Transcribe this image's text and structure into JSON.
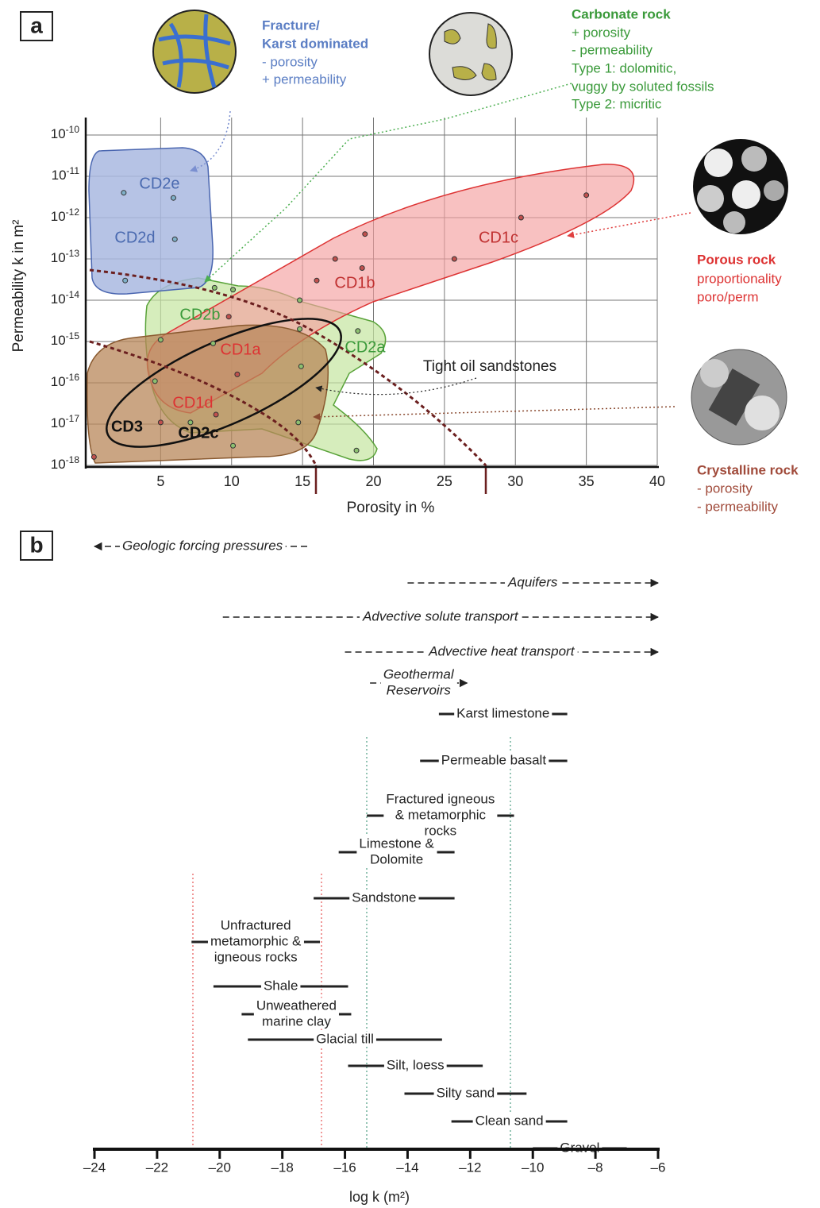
{
  "chart_data": [
    {
      "type": "scatter",
      "panel_label": "a",
      "xlabel": "Porosity in %",
      "ylabel": "Permeability k in m²",
      "xlim": [
        0,
        40
      ],
      "xticks": [
        5,
        10,
        15,
        20,
        25,
        30,
        35,
        40
      ],
      "ylim": [
        1e-18,
        1e-10
      ],
      "yscale": "log",
      "yticks": [
        {
          "value": 1e-10,
          "label": "10-10"
        },
        {
          "value": 1e-11,
          "label": "10-11"
        },
        {
          "value": 1e-12,
          "label": "10-12"
        },
        {
          "value": 1e-13,
          "label": "10-13"
        },
        {
          "value": 1e-14,
          "label": "10-14"
        },
        {
          "value": 1e-15,
          "label": "10-15"
        },
        {
          "value": 1e-16,
          "label": "10-16"
        },
        {
          "value": 1e-17,
          "label": "10-17"
        },
        {
          "value": 1e-18,
          "label": "10-18"
        }
      ],
      "grid": true,
      "series": [
        {
          "color": "#7fb0c8",
          "x": [
            2.4,
            5.9,
            6.0,
            2.5
          ],
          "values": [
            4e-12,
            3e-12,
            3e-13,
            3e-14
          ]
        },
        {
          "color": "#c0504d",
          "x": [
            35,
            30.4,
            25.7,
            19.4,
            17.3,
            19.2,
            16.0,
            9.8,
            10.4,
            8.9,
            5.0,
            0.3
          ],
          "values": [
            3.5e-12,
            1e-12,
            1e-13,
            4e-13,
            1e-13,
            6e-14,
            3e-14,
            4e-15,
            1.6e-16,
            1.7e-17,
            1.1e-17,
            1.6e-18
          ]
        },
        {
          "color": "#8cc070",
          "x": [
            8.8,
            10.1,
            14.8,
            5.0,
            14.8,
            18.9,
            8.7,
            4.6,
            14.9,
            7.1,
            14.7,
            10.1,
            18.8
          ],
          "values": [
            2e-14,
            1.8e-14,
            1e-14,
            1.1e-15,
            2e-15,
            1.8e-15,
            9e-16,
            1.1e-16,
            2.5e-16,
            1.1e-17,
            1.1e-17,
            3e-18,
            2.3e-18
          ]
        }
      ],
      "regions": [
        "CD2e",
        "CD2d",
        "CD2b",
        "CD2a",
        "CD1a",
        "CD1b",
        "CD1c",
        "CD1d",
        "CD3",
        "CD2c",
        "Tight oil sandstones"
      ],
      "annotations": {
        "fracture": [
          "Fracture/",
          "Karst dominated",
          "- porosity",
          "+ permeability"
        ],
        "carbonate": [
          "Carbonate rock",
          "+ porosity",
          "- permeability",
          "Type 1: dolomitic,",
          "vuggy by soluted fossils",
          "Type 2: micritic"
        ],
        "porous": [
          "Porous rock",
          "proportionality",
          "poro/perm"
        ],
        "crystalline": [
          "Crystalline rock",
          "- porosity",
          "- permeability"
        ]
      }
    },
    {
      "type": "range",
      "panel_label": "b",
      "xlabel": "log k (m²)",
      "xlim": [
        -24,
        -6
      ],
      "xticks": [
        {
          "value": -24,
          "label": "–24"
        },
        {
          "value": -22,
          "label": "–22"
        },
        {
          "value": -20,
          "label": "–20"
        },
        {
          "value": -18,
          "label": "–18"
        },
        {
          "value": -16,
          "label": "–16"
        },
        {
          "value": -14,
          "label": "–14"
        },
        {
          "value": -12,
          "label": "–12"
        },
        {
          "value": -10,
          "label": "–10"
        },
        {
          "value": -8,
          "label": "–8"
        },
        {
          "value": -6,
          "label": "–6"
        }
      ],
      "ranges": [
        {
          "label": [
            "Geologic forcing pressures"
          ],
          "low": -24,
          "high": -17.1,
          "style": "dashed",
          "arrow": "left"
        },
        {
          "label": [
            "Aquifers"
          ],
          "low": -14.0,
          "high": -6,
          "style": "dashed",
          "arrow": "right"
        },
        {
          "label": [
            "Advective solute transport"
          ],
          "low": -19.9,
          "high": -6,
          "style": "dashed",
          "arrow": "right"
        },
        {
          "label": [
            "Advective heat transport"
          ],
          "low": -16.0,
          "high": -6,
          "style": "dashed",
          "arrow": "right"
        },
        {
          "label": [
            "Geothermal",
            "Reservoirs"
          ],
          "low": -15.2,
          "high": -12.1,
          "style": "dashed",
          "arrow": "right"
        },
        {
          "label": [
            "Karst limestone"
          ],
          "low": -13.0,
          "high": -8.9,
          "style": "solid"
        },
        {
          "label": [
            "Permeable basalt"
          ],
          "low": -13.6,
          "high": -8.9,
          "style": "solid"
        },
        {
          "label": [
            "Fractured igneous",
            "& metamorphic",
            "rocks"
          ],
          "low": -15.3,
          "high": -10.6,
          "style": "solid"
        },
        {
          "label": [
            "Limestone &",
            "Dolomite"
          ],
          "low": -16.2,
          "high": -12.5,
          "style": "solid"
        },
        {
          "label": [
            "Sandstone"
          ],
          "low": -17.0,
          "high": -12.5,
          "style": "solid"
        },
        {
          "label": [
            "Unfractured",
            "metamorphic &",
            "igneous rocks"
          ],
          "low": -20.9,
          "high": -16.8,
          "style": "solid"
        },
        {
          "label": [
            "Shale"
          ],
          "low": -20.2,
          "high": -15.9,
          "style": "solid"
        },
        {
          "label": [
            "Unweathered",
            "marine clay"
          ],
          "low": -19.3,
          "high": -15.8,
          "style": "solid"
        },
        {
          "label": [
            "Glacial till"
          ],
          "low": -19.1,
          "high": -12.9,
          "style": "solid"
        },
        {
          "label": [
            "Silt, loess"
          ],
          "low": -15.9,
          "high": -11.6,
          "style": "solid"
        },
        {
          "label": [
            "Silty sand"
          ],
          "low": -14.1,
          "high": -10.2,
          "style": "solid"
        },
        {
          "label": [
            "Clean sand"
          ],
          "low": -12.6,
          "high": -8.9,
          "style": "solid"
        },
        {
          "label": [
            "Gravel"
          ],
          "low": -10.0,
          "high": -7.0,
          "style": "solid"
        }
      ]
    }
  ]
}
